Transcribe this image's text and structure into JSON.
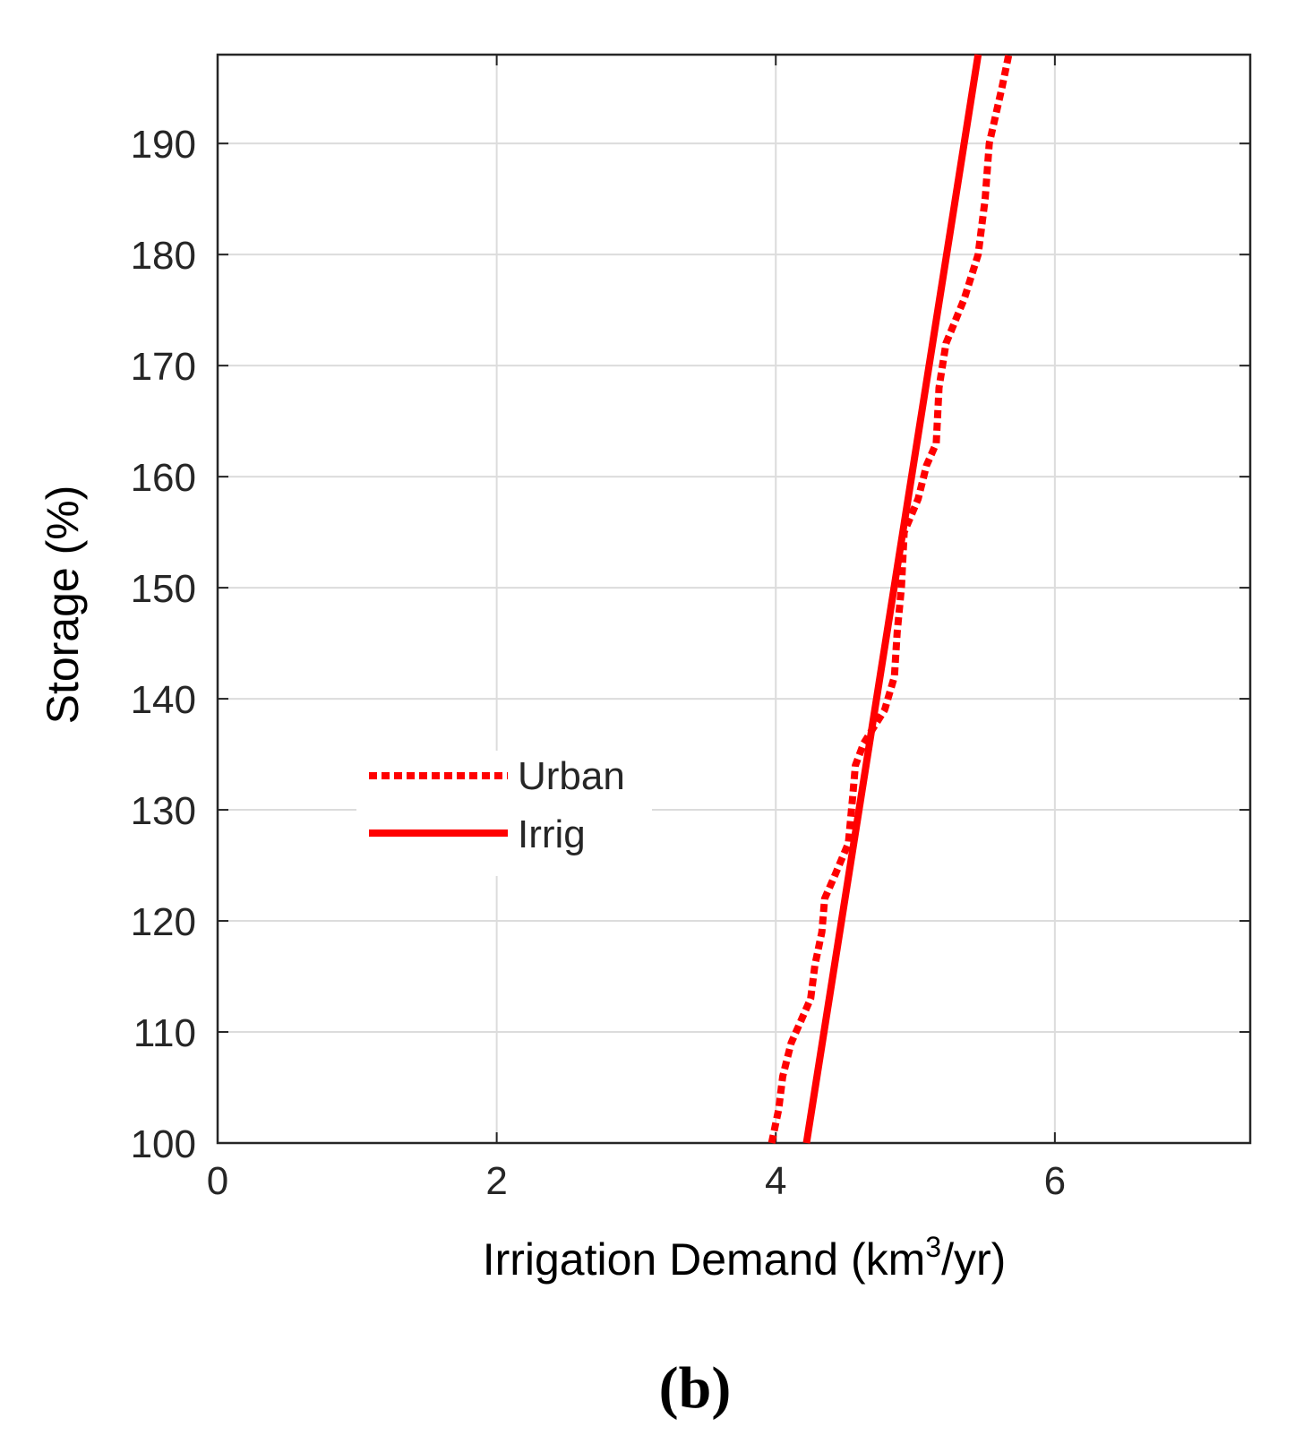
{
  "chart_data": {
    "type": "line",
    "title": "",
    "xlabel": "Irrigation Demand (km",
    "xlabel_superscript": "3",
    "xlabel_suffix": "/yr)",
    "ylabel": "Storage (%)",
    "xlim": [
      0,
      7.4
    ],
    "ylim": [
      100,
      198
    ],
    "xticks": [
      0,
      2,
      4,
      6
    ],
    "xtick_labels": [
      "0",
      "2",
      "4",
      "6"
    ],
    "yticks": [
      100,
      110,
      120,
      130,
      140,
      150,
      160,
      170,
      180,
      190
    ],
    "ytick_labels": [
      "100",
      "110",
      "120",
      "130",
      "140",
      "150",
      "160",
      "170",
      "180",
      "190"
    ],
    "grid": true,
    "legend_position": "center-left",
    "panel_label": "(b)",
    "series": [
      {
        "name": "Urban",
        "color": "#ff0000",
        "style": "dotted",
        "points": [
          [
            3.97,
            100
          ],
          [
            4.02,
            103
          ],
          [
            4.05,
            106
          ],
          [
            4.11,
            109
          ],
          [
            4.18,
            111
          ],
          [
            4.25,
            113
          ],
          [
            4.28,
            116
          ],
          [
            4.33,
            119
          ],
          [
            4.35,
            122
          ],
          [
            4.42,
            124
          ],
          [
            4.52,
            127
          ],
          [
            4.55,
            131
          ],
          [
            4.57,
            134
          ],
          [
            4.63,
            136
          ],
          [
            4.78,
            139
          ],
          [
            4.85,
            142
          ],
          [
            4.87,
            146
          ],
          [
            4.9,
            150
          ],
          [
            4.92,
            155
          ],
          [
            5.02,
            158
          ],
          [
            5.08,
            161
          ],
          [
            5.15,
            163
          ],
          [
            5.17,
            168
          ],
          [
            5.22,
            172
          ],
          [
            5.35,
            176
          ],
          [
            5.45,
            180
          ],
          [
            5.5,
            185
          ],
          [
            5.53,
            190
          ],
          [
            5.62,
            195
          ],
          [
            5.67,
            198
          ]
        ]
      },
      {
        "name": "Irrig",
        "color": "#ff0000",
        "style": "solid",
        "points": [
          [
            4.22,
            100
          ],
          [
            5.45,
            198
          ]
        ]
      }
    ]
  }
}
